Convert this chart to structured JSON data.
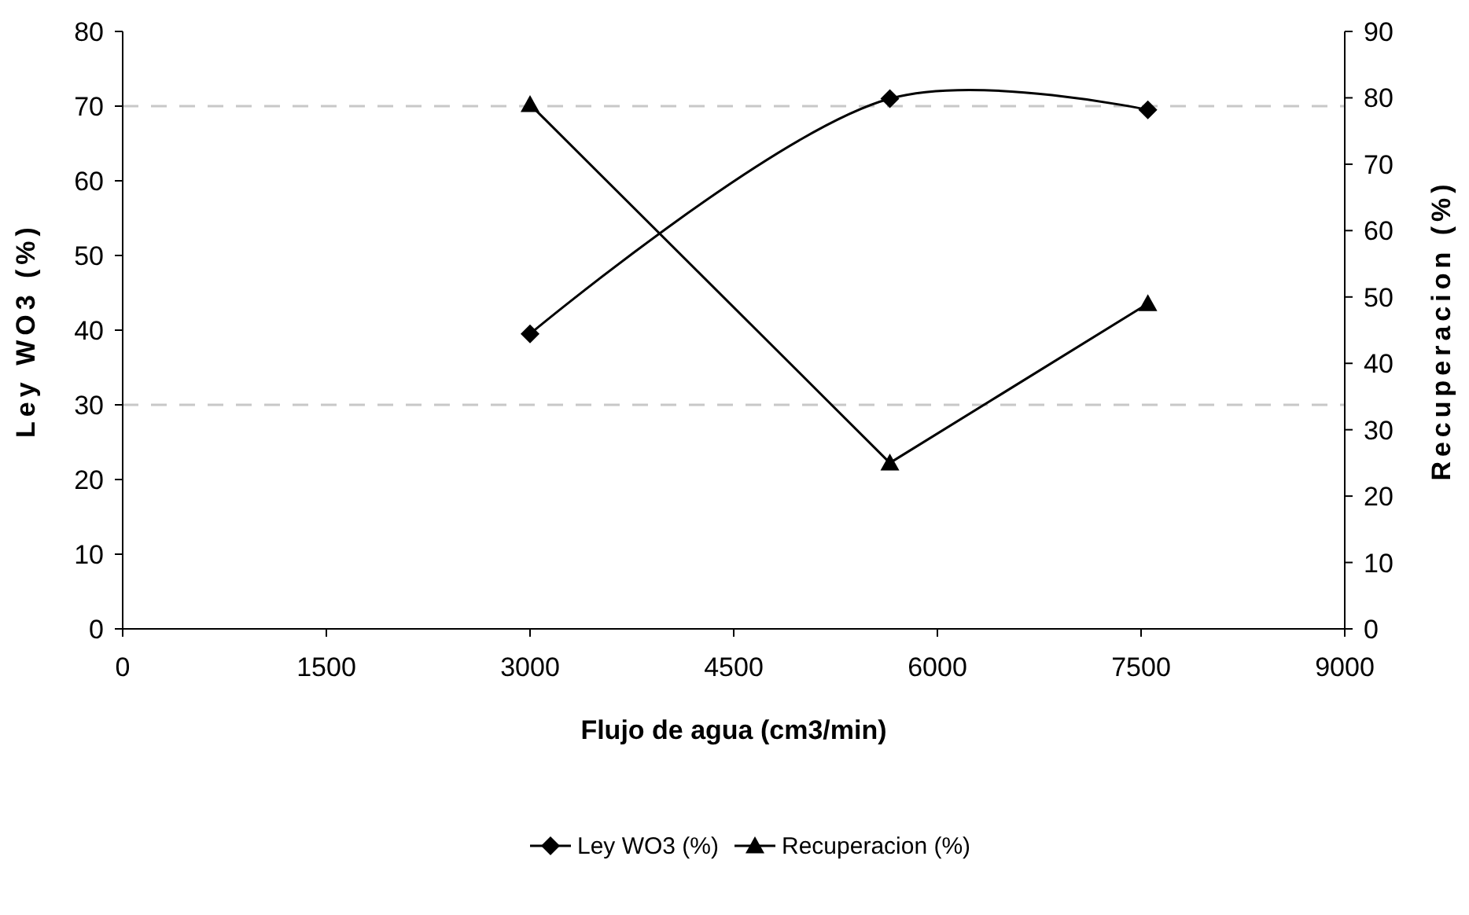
{
  "chart_data": {
    "type": "line",
    "xlabel": "Flujo de agua (cm3/min)",
    "ylabel": "Ley WO3 (%)",
    "y2label": "Recuperacion (%)",
    "series": [
      {
        "name": "Ley WO3 (%)",
        "color": "#000000",
        "marker": "diamond",
        "x": [
          3000,
          5650,
          7550
        ],
        "values": [
          39.5,
          71,
          69.5
        ]
      },
      {
        "name": "Recuperacion (%)",
        "color": "#000000",
        "marker": "triangle",
        "axis": "y2",
        "x": [
          3000,
          5650,
          7550
        ],
        "values": [
          79,
          25,
          49
        ]
      }
    ],
    "xlim": [
      0,
      9000
    ],
    "xticks": [
      0,
      1500,
      3000,
      4500,
      6000,
      7500,
      9000
    ],
    "ylim": [
      0,
      80
    ],
    "yticks": [
      0,
      10,
      20,
      30,
      40,
      50,
      60,
      70,
      80
    ],
    "y2lim": [
      0,
      90
    ],
    "y2ticks": [
      0,
      10,
      20,
      30,
      40,
      50,
      60,
      70,
      80,
      90
    ],
    "ref_lines": [
      {
        "axis": "y",
        "value": 70,
        "color": "#c8c8c8",
        "line_style": "dashed"
      },
      {
        "axis": "y",
        "value": 30,
        "color": "#c8c8c8",
        "line_style": "dashed"
      }
    ],
    "legend": "bottom"
  }
}
